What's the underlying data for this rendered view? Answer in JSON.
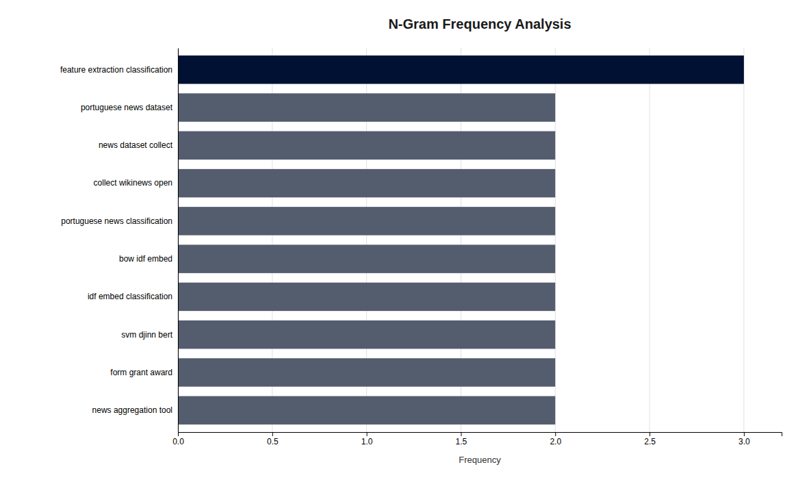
{
  "chart_data": {
    "type": "bar",
    "orientation": "horizontal",
    "title": "N-Gram Frequency Analysis",
    "xlabel": "Frequency",
    "categories": [
      "news aggregation tool",
      "form grant award",
      "svm djinn bert",
      "idf embed classification",
      "bow idf embed",
      "portuguese news classification",
      "collect wikinews open",
      "news dataset collect",
      "portuguese news dataset",
      "feature extraction classification"
    ],
    "values": [
      2,
      2,
      2,
      2,
      2,
      2,
      2,
      2,
      2,
      3
    ],
    "colors": [
      "#545d6e",
      "#545d6e",
      "#545d6e",
      "#545d6e",
      "#545d6e",
      "#545d6e",
      "#545d6e",
      "#545d6e",
      "#545d6e",
      "#001133"
    ],
    "xlim": [
      0,
      3.2
    ],
    "xticks": [
      {
        "value": 0.0,
        "label": "0.0"
      },
      0.5,
      {
        "value": 1.0,
        "label": "1.0"
      },
      1.5,
      {
        "value": 2.0,
        "label": "2.0"
      },
      2.5,
      {
        "value": 3.0,
        "label": "3.0"
      }
    ],
    "grid": true
  }
}
